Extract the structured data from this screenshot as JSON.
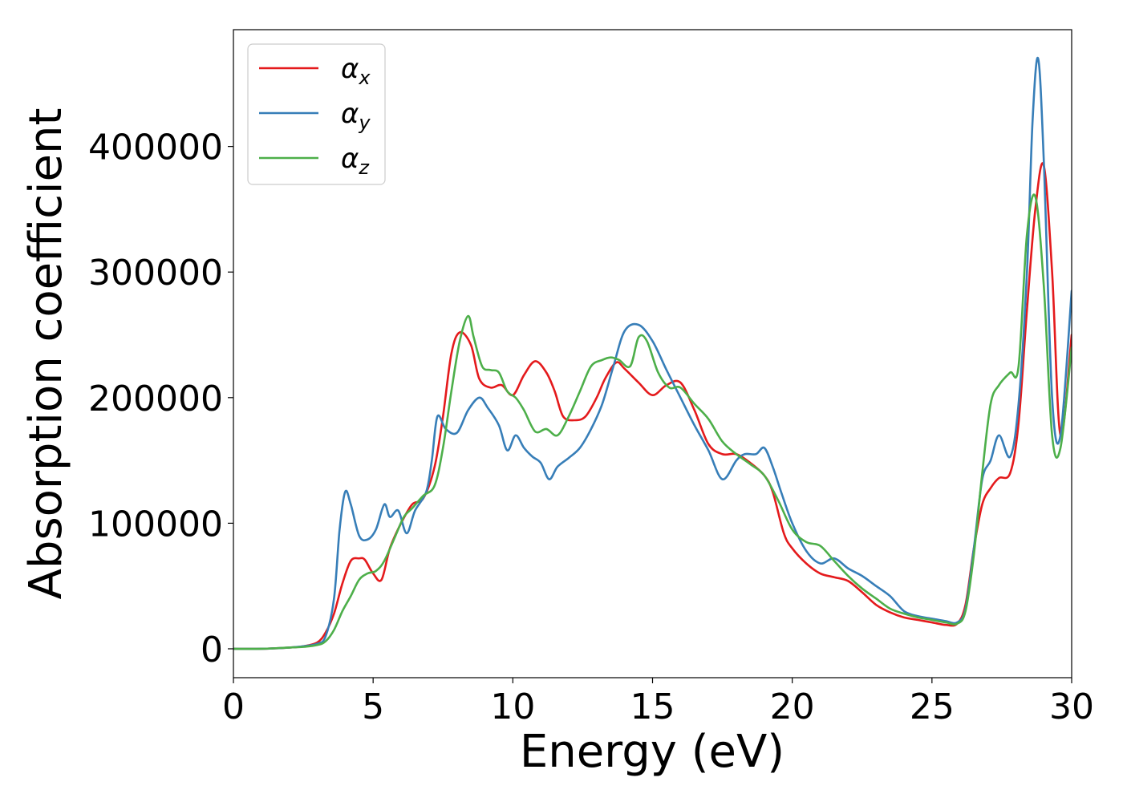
{
  "chart_data": {
    "type": "line",
    "title": "",
    "xlabel": "Energy (eV)",
    "ylabel": "Absorption coefficient",
    "xlim": [
      0,
      30
    ],
    "ylim": [
      -23000,
      493000
    ],
    "xticks": [
      0,
      5,
      10,
      15,
      20,
      25,
      30
    ],
    "yticks": [
      0,
      100000,
      200000,
      300000,
      400000
    ],
    "grid": false,
    "legend_position": "top-left",
    "series": [
      {
        "name": "αx",
        "symbol": "α",
        "subscript": "x",
        "color": "#e41a1c",
        "x": [
          0,
          1,
          2,
          2.5,
          3,
          3.3,
          3.6,
          3.9,
          4.2,
          4.5,
          4.7,
          5,
          5.3,
          5.6,
          6,
          6.4,
          6.8,
          7.2,
          7.5,
          7.8,
          8.1,
          8.5,
          8.8,
          9.2,
          9.6,
          10,
          10.4,
          10.8,
          11.2,
          11.5,
          11.8,
          12.2,
          12.6,
          13,
          13.3,
          13.7,
          14,
          14.5,
          15,
          15.5,
          16,
          16.5,
          17,
          17.5,
          18,
          18.5,
          19,
          19.3,
          19.7,
          20,
          20.5,
          21,
          21.5,
          22,
          22.5,
          23,
          23.5,
          24,
          24.5,
          25,
          25.5,
          25.9,
          26.2,
          26.5,
          26.8,
          27.1,
          27.4,
          27.8,
          28.1,
          28.4,
          28.7,
          29,
          29.3,
          29.6,
          30
        ],
        "y": [
          0,
          0,
          1000,
          2000,
          5000,
          13000,
          28000,
          52000,
          70000,
          72000,
          71000,
          60000,
          55000,
          80000,
          100000,
          115000,
          120000,
          145000,
          185000,
          235000,
          252000,
          242000,
          215000,
          208000,
          210000,
          202000,
          218000,
          229000,
          220000,
          205000,
          185000,
          182000,
          185000,
          200000,
          215000,
          228000,
          223000,
          212000,
          202000,
          210000,
          212000,
          190000,
          163000,
          155000,
          155000,
          148000,
          138000,
          125000,
          92000,
          80000,
          68000,
          60000,
          57000,
          54000,
          45000,
          35000,
          29000,
          25000,
          23000,
          21000,
          19000,
          20000,
          35000,
          80000,
          115000,
          128000,
          136000,
          140000,
          180000,
          270000,
          350000,
          385000,
          300000,
          170000,
          250000
        ]
      },
      {
        "name": "αy",
        "symbol": "α",
        "subscript": "y",
        "color": "#377eb8",
        "x": [
          0,
          1,
          2,
          2.5,
          3,
          3.3,
          3.6,
          3.8,
          4,
          4.2,
          4.5,
          4.8,
          5.1,
          5.4,
          5.6,
          5.9,
          6.2,
          6.5,
          6.9,
          7.1,
          7.3,
          7.6,
          8,
          8.4,
          8.8,
          9.1,
          9.5,
          9.8,
          10.1,
          10.4,
          10.7,
          11,
          11.3,
          11.6,
          12,
          12.4,
          12.8,
          13.2,
          13.6,
          14,
          14.5,
          15,
          15.5,
          16,
          16.5,
          17,
          17.5,
          18,
          18.3,
          18.7,
          19,
          19.3,
          19.6,
          20,
          20.5,
          21,
          21.5,
          22,
          22.5,
          23,
          23.5,
          24,
          24.5,
          25,
          25.5,
          25.9,
          26.2,
          26.5,
          26.8,
          27.1,
          27.4,
          27.8,
          28.1,
          28.4,
          28.6,
          28.8,
          29,
          29.3,
          29.6,
          30
        ],
        "y": [
          0,
          0,
          1000,
          2000,
          4000,
          10000,
          40000,
          95000,
          125000,
          115000,
          90000,
          87000,
          95000,
          115000,
          105000,
          110000,
          92000,
          110000,
          125000,
          150000,
          185000,
          175000,
          172000,
          190000,
          200000,
          192000,
          178000,
          158000,
          170000,
          160000,
          153000,
          148000,
          135000,
          145000,
          152000,
          160000,
          175000,
          195000,
          225000,
          253000,
          258000,
          245000,
          222000,
          200000,
          178000,
          158000,
          135000,
          150000,
          155000,
          155000,
          160000,
          145000,
          125000,
          100000,
          78000,
          68000,
          72000,
          64000,
          58000,
          50000,
          42000,
          30000,
          26000,
          24000,
          22000,
          21000,
          32000,
          80000,
          135000,
          150000,
          170000,
          153000,
          195000,
          300000,
          420000,
          470000,
          390000,
          200000,
          170000,
          285000
        ]
      },
      {
        "name": "αz",
        "symbol": "α",
        "subscript": "z",
        "color": "#4daf4a",
        "x": [
          0,
          1,
          2,
          2.5,
          3,
          3.3,
          3.6,
          3.9,
          4.2,
          4.5,
          4.8,
          5.1,
          5.4,
          5.8,
          6.1,
          6.4,
          6.8,
          7.2,
          7.5,
          7.8,
          8.1,
          8.4,
          8.6,
          8.9,
          9.2,
          9.5,
          9.8,
          10.1,
          10.4,
          10.8,
          11.2,
          11.6,
          12,
          12.4,
          12.8,
          13.2,
          13.5,
          13.8,
          14.2,
          14.5,
          14.8,
          15.2,
          15.6,
          16,
          16.5,
          17,
          17.5,
          18,
          18.5,
          19,
          19.5,
          20,
          20.5,
          21,
          21.5,
          22,
          22.5,
          23,
          23.5,
          24,
          24.5,
          25,
          25.5,
          25.9,
          26.2,
          26.5,
          26.8,
          27.1,
          27.4,
          27.8,
          28.1,
          28.4,
          28.7,
          29,
          29.3,
          29.6,
          30
        ],
        "y": [
          0,
          0,
          1000,
          1500,
          3000,
          6000,
          15000,
          30000,
          42000,
          55000,
          60000,
          62000,
          70000,
          90000,
          105000,
          112000,
          122000,
          130000,
          160000,
          205000,
          245000,
          265000,
          248000,
          225000,
          222000,
          220000,
          205000,
          200000,
          190000,
          173000,
          175000,
          170000,
          185000,
          205000,
          225000,
          230000,
          232000,
          230000,
          225000,
          248000,
          245000,
          220000,
          208000,
          208000,
          195000,
          183000,
          165000,
          155000,
          147000,
          138000,
          118000,
          95000,
          85000,
          82000,
          70000,
          58000,
          48000,
          40000,
          32000,
          28000,
          25000,
          23000,
          21000,
          20000,
          30000,
          75000,
          140000,
          195000,
          210000,
          220000,
          225000,
          330000,
          360000,
          290000,
          170000,
          160000,
          240000
        ]
      }
    ]
  }
}
